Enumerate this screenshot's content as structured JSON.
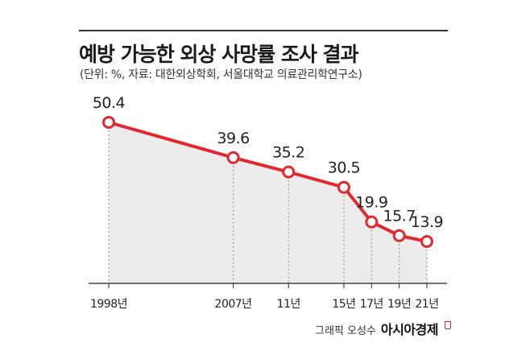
{
  "header": {
    "title": "예방 가능한 외상 사망률 조사 결과",
    "subtitle": "(단위: %, 자료: 대한외상학회, 서울대학교 의료관리학연구소)"
  },
  "footer": {
    "credit": "그래픽 오성수",
    "brand": "아시아경제"
  },
  "colors": {
    "line": "#e02a2f",
    "area": "#ececec",
    "marker_fill": "#ffffff",
    "dashed_guide": "#888888"
  },
  "chart_data": {
    "type": "line",
    "categories": [
      "1998년",
      "2007년",
      "11년",
      "15년",
      "17년",
      "19년",
      "21년"
    ],
    "x": [
      1998,
      2007,
      2011,
      2015,
      2017,
      2019,
      2021
    ],
    "values": [
      50.4,
      39.6,
      35.2,
      30.5,
      19.9,
      15.7,
      13.9
    ],
    "value_labels": [
      "50.4",
      "39.6",
      "35.2",
      "30.5",
      "19.9",
      "15.7",
      "13.9"
    ],
    "title": "예방 가능한 외상 사망률 조사 결과",
    "unit": "%",
    "grid": false,
    "area_fill": true,
    "markers": "hollow circles"
  }
}
